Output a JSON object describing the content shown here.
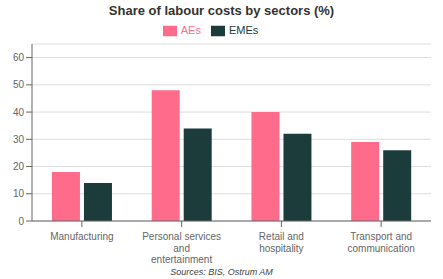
{
  "chart_data": {
    "type": "bar",
    "title": "Share of labour costs by sectors (%)",
    "categories": [
      "Manufacturing",
      "Personal services\nand\nentertainment",
      "Retail and\nhospitality",
      "Transport and\ncommunication"
    ],
    "series": [
      {
        "name": "AEs",
        "color": "#FF6B8A",
        "values": [
          18,
          48,
          40,
          29
        ]
      },
      {
        "name": "EMEs",
        "color": "#1C3C3C",
        "values": [
          14,
          34,
          32,
          26
        ]
      }
    ],
    "ylim": [
      0,
      65
    ],
    "yticks": [
      0,
      10,
      20,
      30,
      40,
      50,
      60
    ],
    "grid": true,
    "legend": "top",
    "annotations": [
      "Sources: BIS, Ostrum AM"
    ]
  }
}
